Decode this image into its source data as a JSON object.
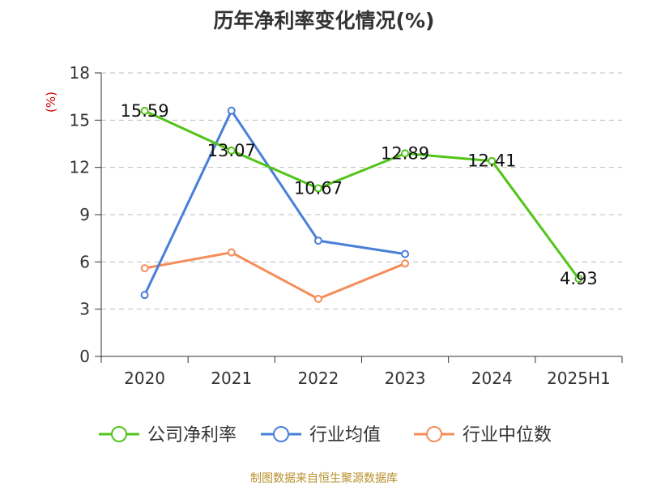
{
  "chart_data": {
    "type": "line",
    "title": "历年净利率变化情况(%)",
    "ylabel": "(%)",
    "xlabel": "",
    "categories": [
      "2020",
      "2021",
      "2022",
      "2023",
      "2024",
      "2025H1"
    ],
    "ylim": [
      0,
      18
    ],
    "yticks": [
      0,
      3,
      6,
      9,
      12,
      15,
      18
    ],
    "grid": true,
    "legend_position": "bottom",
    "series": [
      {
        "name": "公司净利率",
        "color": "#52c41a",
        "values": [
          15.59,
          13.07,
          10.67,
          12.89,
          12.41,
          4.93
        ],
        "labels": [
          "15.59",
          "13.07",
          "10.67",
          "12.89",
          "12.41",
          "4.93"
        ],
        "show_labels": true
      },
      {
        "name": "行业均值",
        "color": "#4a7fd8",
        "values": [
          3.9,
          15.6,
          7.35,
          6.5,
          null,
          null
        ],
        "show_labels": false
      },
      {
        "name": "行业中位数",
        "color": "#f58d5a",
        "values": [
          5.6,
          6.6,
          3.65,
          5.9,
          null,
          null
        ],
        "show_labels": false
      }
    ],
    "source": "制图数据来自恒生聚源数据库"
  }
}
